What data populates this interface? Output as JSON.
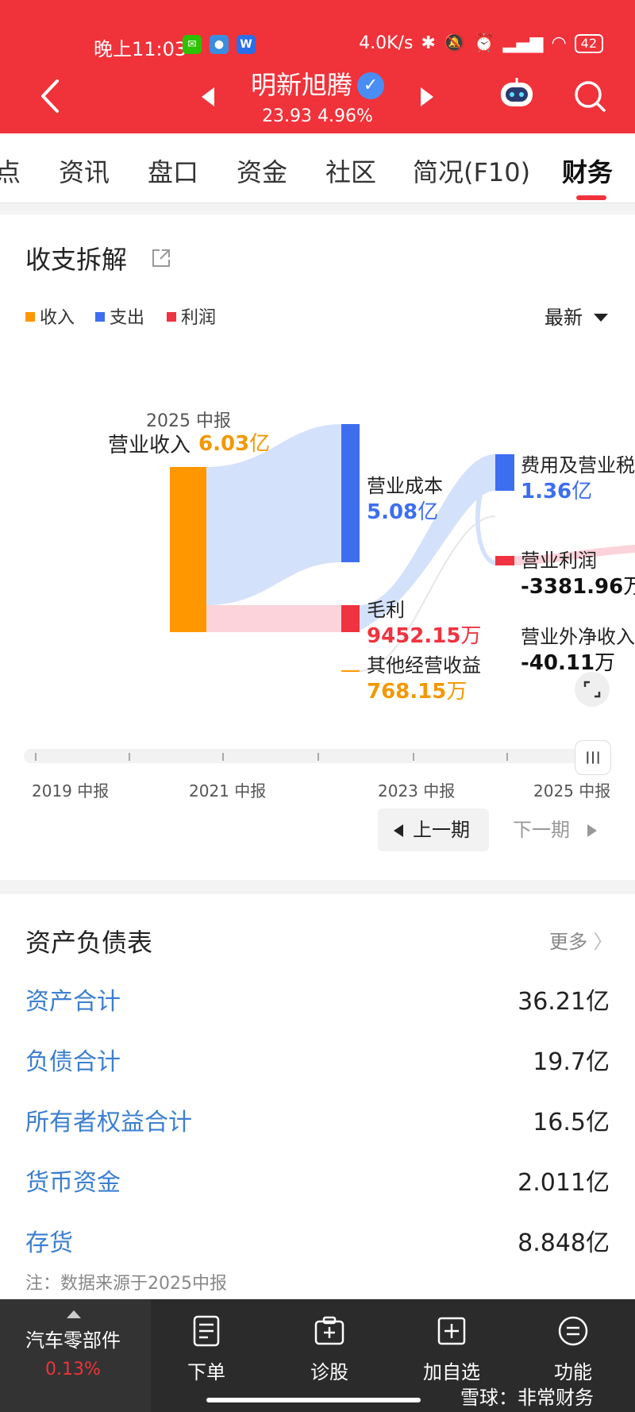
{
  "status_bar": {
    "time": "晚上11:03",
    "network_speed": "4.0K/s",
    "battery": "42"
  },
  "header": {
    "stock_name": "明新旭腾",
    "price": "23.93",
    "change_pct": "4.96%",
    "color": "#f0323a"
  },
  "tabs": [
    {
      "label": "点"
    },
    {
      "label": "资讯"
    },
    {
      "label": "盘口"
    },
    {
      "label": "资金"
    },
    {
      "label": "社区"
    },
    {
      "label": "简况(F10)"
    },
    {
      "label": "财务",
      "active": true
    }
  ],
  "breakdown": {
    "title": "收支拆解",
    "legend": [
      {
        "label": "收入",
        "color": "#ff9800"
      },
      {
        "label": "支出",
        "color": "#3d6ef0"
      },
      {
        "label": "利润",
        "color": "#ef3340"
      }
    ],
    "period_select": "最新",
    "period_label": "2025 中报",
    "nodes": {
      "revenue": {
        "label": "营业收入",
        "value": "6.03",
        "unit": "亿"
      },
      "cost": {
        "label": "营业成本",
        "value": "5.08",
        "unit": "亿"
      },
      "gross_profit": {
        "label": "毛利",
        "value": "9452.15",
        "unit": "万"
      },
      "other_income": {
        "label": "其他经营收益",
        "value": "768.15",
        "unit": "万"
      },
      "expenses": {
        "label": "费用及营业税",
        "value": "1.36",
        "unit": "亿"
      },
      "operating_profit": {
        "label": "营业利润",
        "value": "-3381.96",
        "unit": "万"
      },
      "non_operating": {
        "label": "营业外净收入",
        "value": "-40.11",
        "unit": "万"
      }
    },
    "timeline_labels": [
      "2019 中报",
      "2021 中报",
      "2023 中报",
      "2025 中报"
    ],
    "prev_label": "上一期",
    "next_label": "下一期"
  },
  "balance_sheet": {
    "title": "资产负债表",
    "more": "更多",
    "rows": [
      {
        "label": "资产合计",
        "value": "36.21亿"
      },
      {
        "label": "负债合计",
        "value": "19.7亿"
      },
      {
        "label": "所有者权益合计",
        "value": "16.5亿"
      },
      {
        "label": "货币资金",
        "value": "2.011亿"
      },
      {
        "label": "存货",
        "value": "8.848亿"
      }
    ],
    "note": "注：数据来源于2025中报"
  },
  "bottom_bar": {
    "sector_name": "汽车零部件",
    "sector_change": "0.13%",
    "buttons": [
      {
        "label": "下单",
        "icon": "order-icon"
      },
      {
        "label": "诊股",
        "icon": "diagnose-icon"
      },
      {
        "label": "加自选",
        "icon": "add-watchlist-icon"
      },
      {
        "label": "功能",
        "icon": "menu-icon"
      }
    ]
  },
  "watermark": "雪球：非常财务"
}
